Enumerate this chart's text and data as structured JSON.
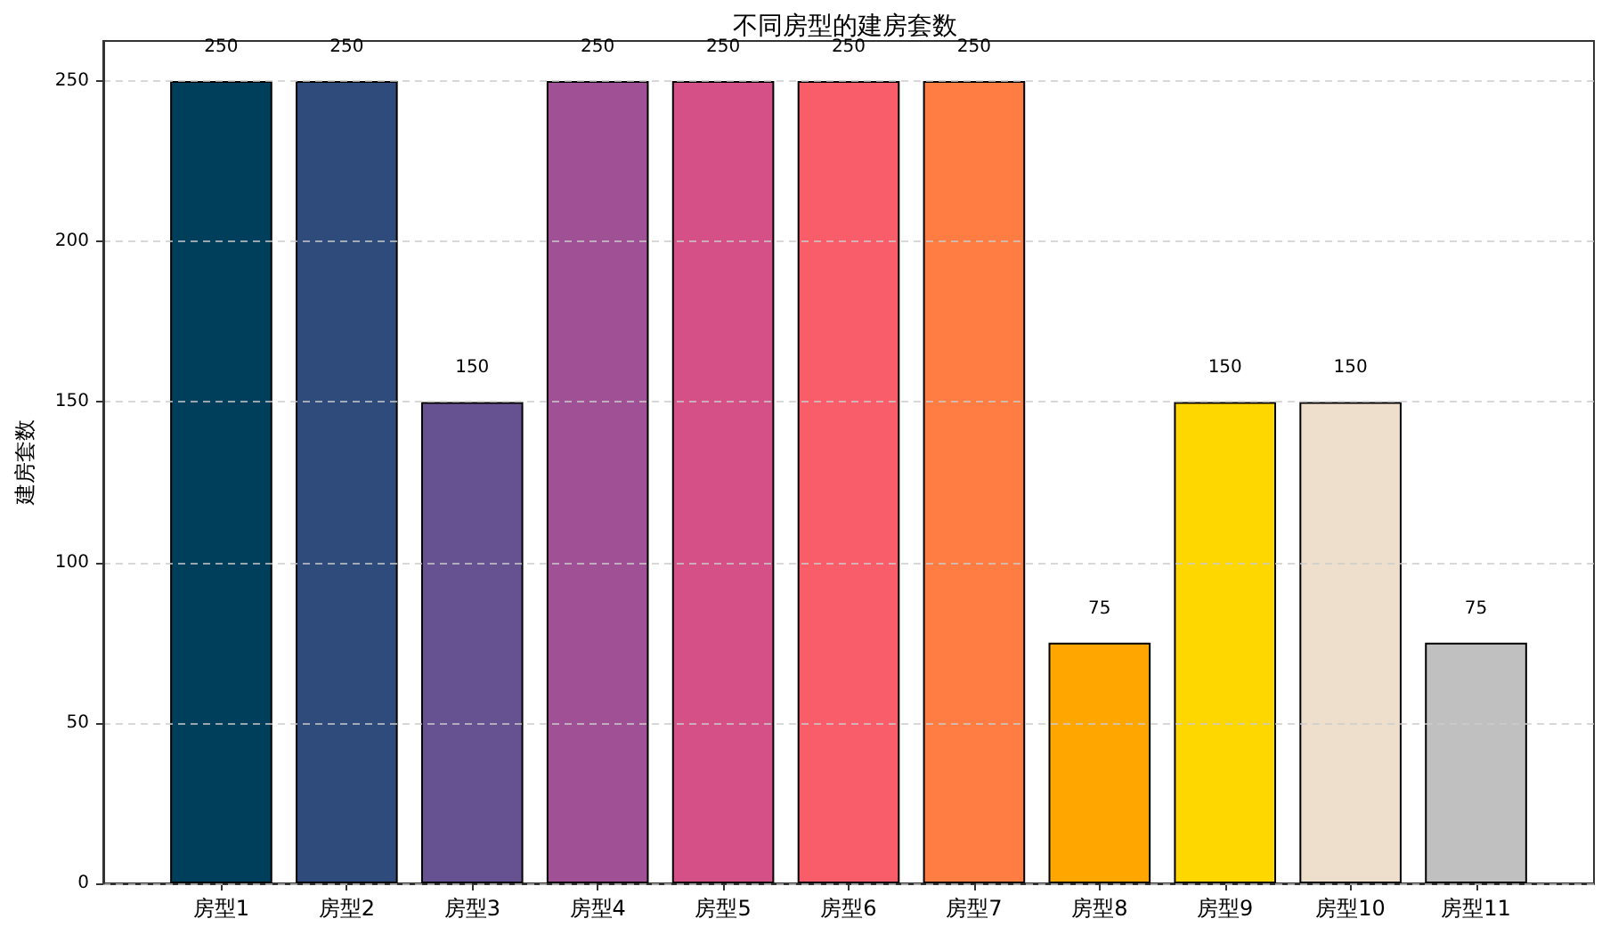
{
  "chart_data": {
    "type": "bar",
    "title": "不同房型的建房套数",
    "ylabel": "建房套数",
    "categories": [
      "房型1",
      "房型2",
      "房型3",
      "房型4",
      "房型5",
      "房型6",
      "房型7",
      "房型8",
      "房型9",
      "房型10",
      "房型11"
    ],
    "values": [
      250,
      250,
      150,
      250,
      250,
      250,
      250,
      75,
      150,
      150,
      75
    ],
    "colors": [
      "#003f5c",
      "#2f4b7c",
      "#665191",
      "#a05195",
      "#d45087",
      "#f95d6a",
      "#ff7c43",
      "#ffa600",
      "#ffd700",
      "#eedfcc",
      "#c0c0c0"
    ],
    "ylim": [
      0,
      262.5
    ],
    "yticks": [
      0,
      50,
      100,
      150,
      200,
      250
    ],
    "grid": "y",
    "data_labels": true
  }
}
